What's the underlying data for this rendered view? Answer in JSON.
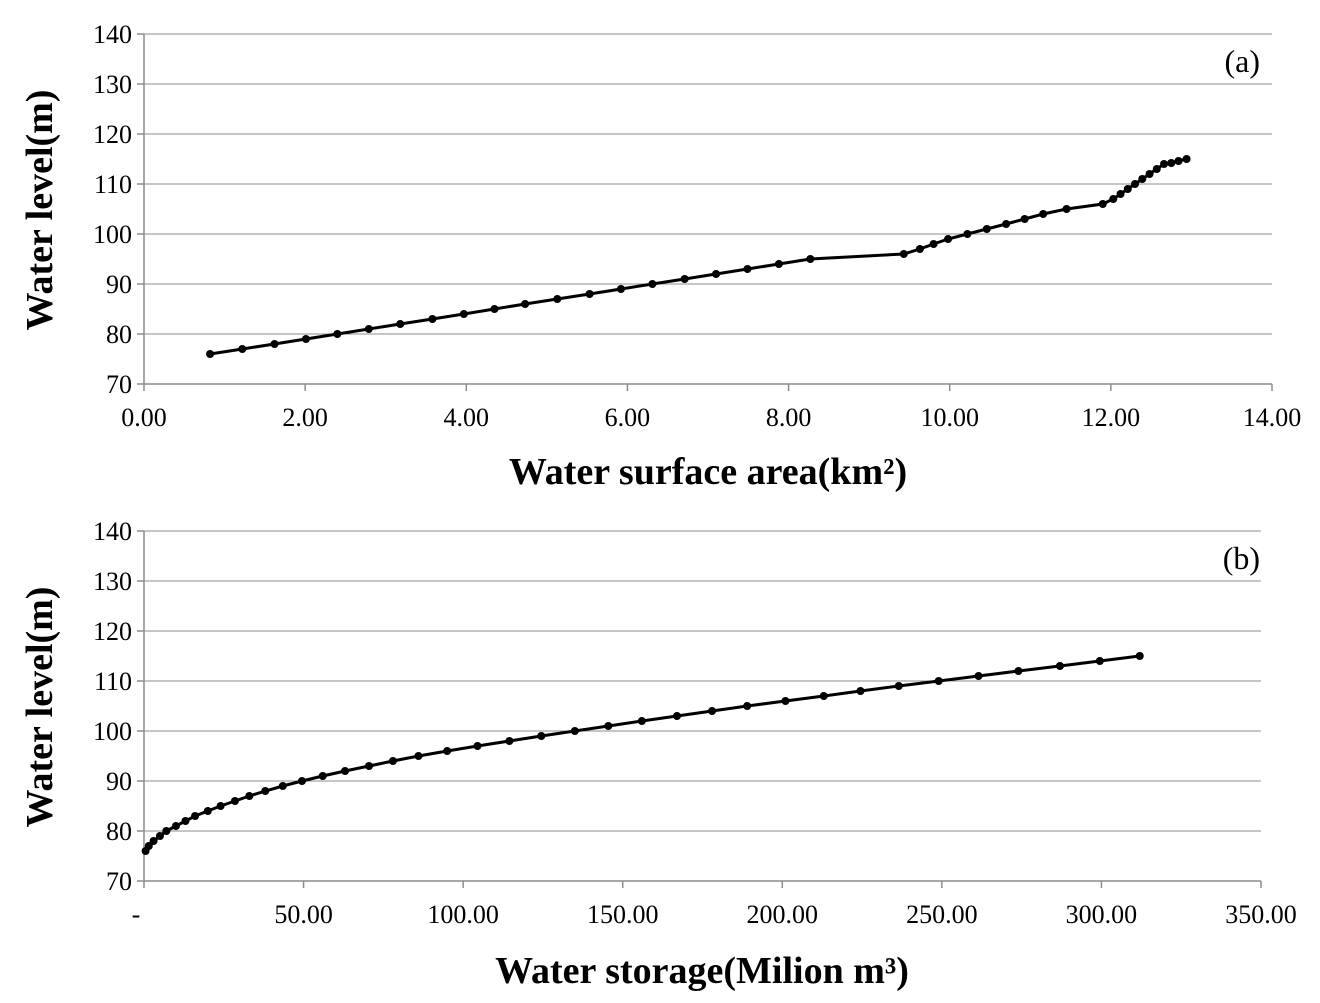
{
  "chart_data": [
    {
      "type": "line",
      "panel_label": "(a)",
      "xlabel": "Water surface area(km²)",
      "ylabel": "Water level(m)",
      "xlim": [
        0,
        14
      ],
      "ylim": [
        70,
        140
      ],
      "x_ticks": [
        0,
        2,
        4,
        6,
        8,
        10,
        12,
        14
      ],
      "x_tick_labels": [
        "0.00",
        "2.00",
        "4.00",
        "6.00",
        "8.00",
        "10.00",
        "12.00",
        "14.00"
      ],
      "y_ticks": [
        70,
        80,
        90,
        100,
        110,
        120,
        130,
        140
      ],
      "y_tick_labels": [
        "70",
        "80",
        "90",
        "100",
        "110",
        "120",
        "130",
        "140"
      ],
      "grid": "horizontal",
      "colors": {
        "line": "#000000",
        "grid": "#8c8c8c"
      },
      "series": [
        {
          "x": [
            0.82,
            1.22,
            1.62,
            2.01,
            2.4,
            2.79,
            3.18,
            3.58,
            3.97,
            4.35,
            4.73,
            5.13,
            5.53,
            5.92,
            6.31,
            6.71,
            7.1,
            7.49,
            7.88,
            8.27,
            9.43,
            9.63,
            9.8,
            9.98,
            10.22,
            10.46,
            10.7,
            10.93,
            11.16,
            11.45,
            11.9,
            12.03,
            12.12,
            12.21,
            12.3,
            12.39,
            12.48,
            12.57,
            12.66,
            12.75,
            12.84,
            12.94
          ],
          "y": [
            76,
            77,
            78,
            79,
            80,
            81,
            82,
            83,
            84,
            85,
            86,
            87,
            88,
            89,
            90,
            91,
            92,
            93,
            94,
            95,
            96,
            97,
            98,
            99,
            100,
            101,
            102,
            103,
            104,
            105,
            106,
            107,
            108,
            109,
            110,
            111,
            112,
            113,
            114,
            114.2,
            114.6,
            115
          ]
        }
      ]
    },
    {
      "type": "line",
      "panel_label": "(b)",
      "xlabel": "Water storage(Milion m³)",
      "ylabel": "Water level(m)",
      "xlim": [
        0,
        350
      ],
      "ylim": [
        70,
        140
      ],
      "x_ticks": [
        0,
        50,
        100,
        150,
        200,
        250,
        300,
        350
      ],
      "x_tick_labels": [
        "-",
        "50.00",
        "100.00",
        "150.00",
        "200.00",
        "250.00",
        "300.00",
        "350.00"
      ],
      "y_ticks": [
        70,
        80,
        90,
        100,
        110,
        120,
        130,
        140
      ],
      "y_tick_labels": [
        "70",
        "80",
        "90",
        "100",
        "110",
        "120",
        "130",
        "140"
      ],
      "grid": "horizontal",
      "colors": {
        "line": "#000000",
        "grid": "#8c8c8c"
      },
      "series": [
        {
          "x": [
            0.5,
            1.5,
            3,
            5,
            7,
            10,
            13,
            16,
            20,
            24,
            28.5,
            33,
            38,
            43.5,
            49.5,
            56,
            63,
            70.5,
            78,
            86,
            95,
            104.5,
            114.5,
            124.5,
            135,
            145.5,
            156,
            167,
            178,
            189,
            201,
            213,
            224.5,
            236.5,
            249,
            261.5,
            274,
            287,
            299.5,
            312
          ],
          "y": [
            76,
            77,
            78,
            79,
            80,
            81,
            82,
            83,
            84,
            85,
            86,
            87,
            88,
            89,
            90,
            91,
            92,
            93,
            94,
            95,
            96,
            97,
            98,
            99,
            100,
            101,
            102,
            103,
            104,
            105,
            106,
            107,
            108,
            109,
            110,
            111,
            112,
            113,
            114,
            115
          ]
        }
      ]
    }
  ]
}
